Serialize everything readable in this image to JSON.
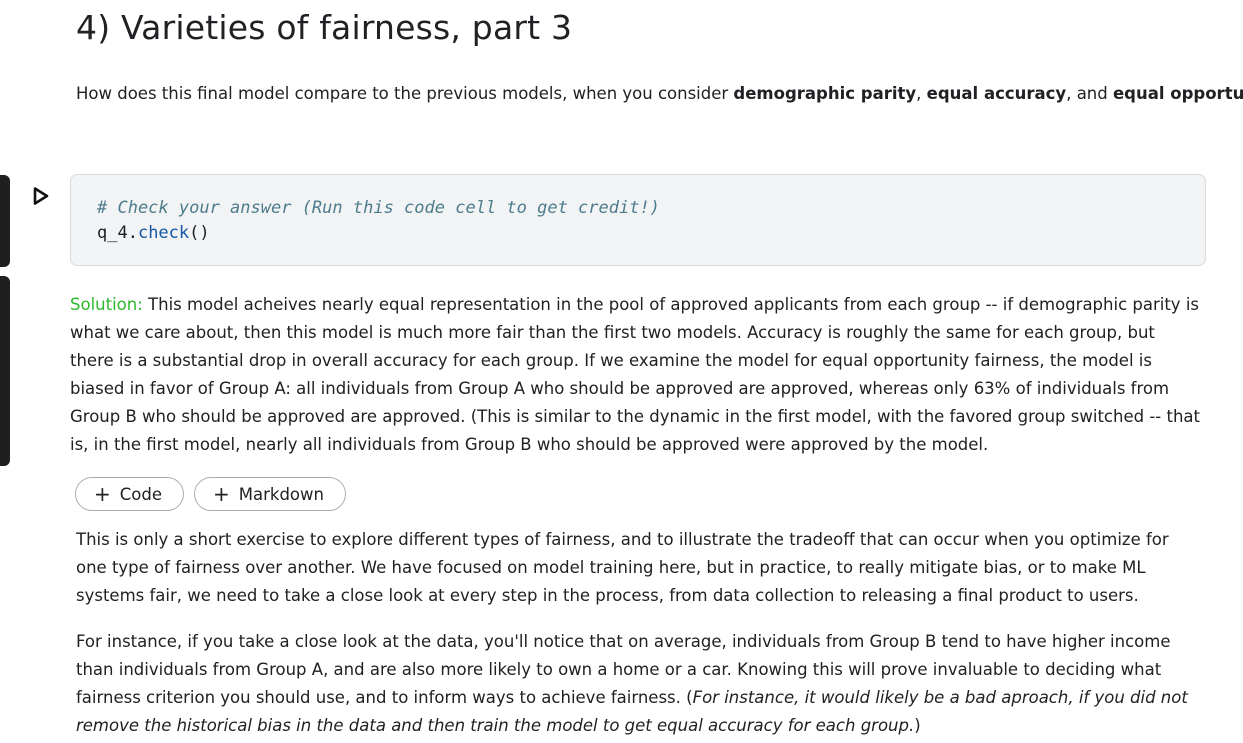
{
  "heading": "4) Varieties of fairness, part 3",
  "question": {
    "before": "How does this final model compare to the previous models, when you consider ",
    "term1": "demographic parity",
    "sep1": ", ",
    "term2": "equal accuracy",
    "sep2": ", and ",
    "term3": "equal opportunity",
    "after": "?"
  },
  "code_cell": {
    "comment": "# Check your answer (Run this code cell to get credit!)",
    "obj": "q_4.",
    "fn": "check",
    "args": "()"
  },
  "solution": {
    "label": "Solution:",
    "text": " This model acheives nearly equal representation in the pool of approved applicants from each group -- if demographic parity is what we care about, then this model is much more fair than the first two models. Accuracy is roughly the same for each group, but there is a substantial drop in overall accuracy for each group. If we examine the model for equal opportunity fairness, the model is biased in favor of Group A: all individuals from Group A who should be approved are approved, whereas only 63% of individuals from Group B who should be approved are approved. (This is similar to the dynamic in the first model, with the favored group switched -- that is, in the first model, nearly all individuals from Group B who should be approved were approved by the model."
  },
  "buttons": {
    "plus": "+",
    "code_label": "Code",
    "markdown_label": "Markdown"
  },
  "para1": "This is only a short exercise to explore different types of fairness, and to illustrate the tradeoff that can occur when you optimize for one type of fairness over another. We have focused on model training here, but in practice, to really mitigate bias, or to make ML systems fair, we need to take a close look at every step in the process, from data collection to releasing a final product to users.",
  "para2": {
    "text": "For instance, if you take a close look at the data, you'll notice that on average, individuals from Group B tend to have higher income than individuals from Group A, and are also more likely to own a home or a car. Knowing this will prove invaluable to deciding what fairness criterion you should use, and to inform ways to achieve fairness. (",
    "italic": "For instance, it would likely be a bad aproach, if you did not remove the historical bias in the data and then train the model to get equal accuracy for each group.",
    "close": ")"
  },
  "icons": {
    "run": "play-triangle-icon",
    "add": "plus-icon"
  },
  "colors": {
    "solution_label": "#2eb82e",
    "code_bg": "#f1f3f4",
    "comment": "#4e7c8c",
    "function": "#1557a6",
    "gutter": "#1f1f1f"
  }
}
